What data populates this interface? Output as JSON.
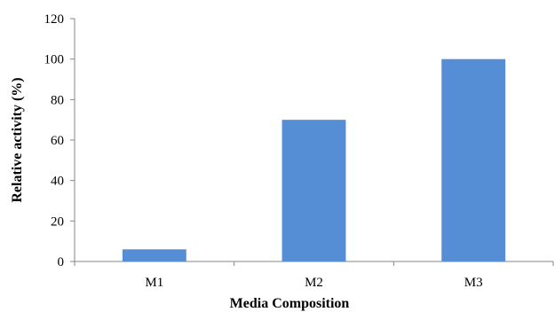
{
  "chart_data": {
    "type": "bar",
    "title": "",
    "xlabel": "Media Composition",
    "ylabel": "Relative activity (%)",
    "categories": [
      "M1",
      "M2",
      "M3"
    ],
    "values": [
      6,
      70,
      100
    ],
    "ylim": [
      0,
      120
    ],
    "yticks": [
      0,
      20,
      40,
      60,
      80,
      100,
      120
    ],
    "grid": false,
    "legend": "none",
    "bar_color": "#558ed5",
    "axis_color": "#868686"
  }
}
